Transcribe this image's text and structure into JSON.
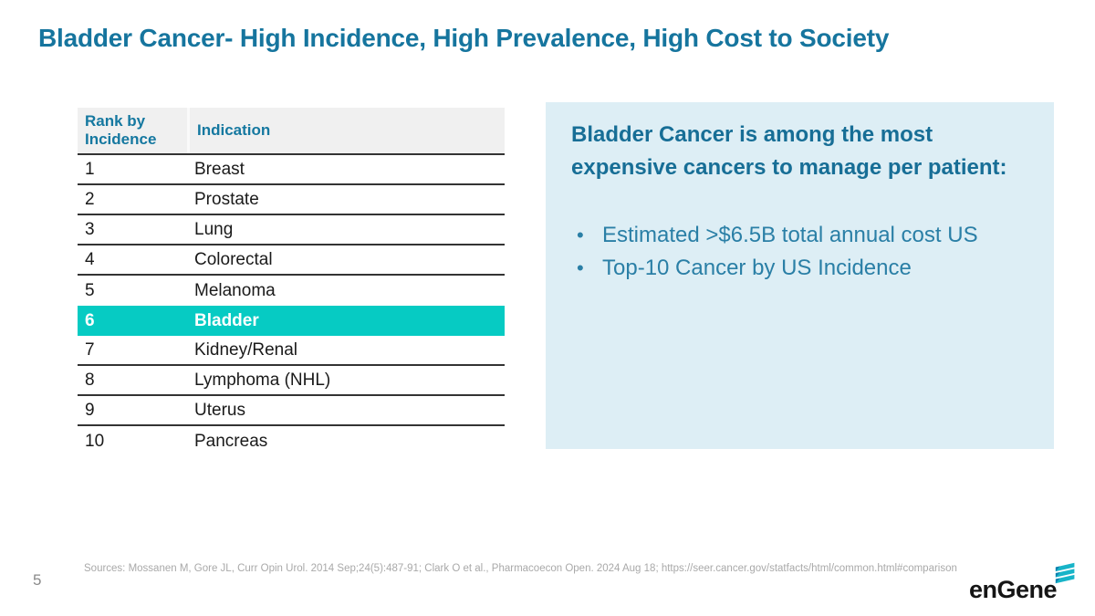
{
  "slide": {
    "title": "Bladder Cancer- High Incidence, High Prevalence, High Cost to Society",
    "page_number": "5",
    "sources": "Sources: Mossanen M, Gore JL, Curr Opin Urol. 2014 Sep;24(5):487-91; Clark O et al., Pharmacoecon Open. 2024 Aug 18; https://seer.cancer.gov/statfacts/html/common.html#comparison",
    "logo_text": "enGene"
  },
  "table": {
    "columns": [
      "Rank by Incidence",
      "Indication"
    ],
    "rows": [
      {
        "rank": "1",
        "indication": "Breast",
        "highlighted": false
      },
      {
        "rank": "2",
        "indication": "Prostate",
        "highlighted": false
      },
      {
        "rank": "3",
        "indication": "Lung",
        "highlighted": false
      },
      {
        "rank": "4",
        "indication": "Colorectal",
        "highlighted": false
      },
      {
        "rank": "5",
        "indication": "Melanoma",
        "highlighted": false
      },
      {
        "rank": "6",
        "indication": "Bladder",
        "highlighted": true
      },
      {
        "rank": "7",
        "indication": "Kidney/Renal",
        "highlighted": false
      },
      {
        "rank": "8",
        "indication": "Lymphoma (NHL)",
        "highlighted": false
      },
      {
        "rank": "9",
        "indication": "Uterus",
        "highlighted": false
      },
      {
        "rank": "10",
        "indication": "Pancreas",
        "highlighted": false
      }
    ]
  },
  "panel": {
    "heading": "Bladder Cancer is among the most expensive cancers to manage per patient:",
    "bullets": [
      "Estimated >$6.5B total annual cost US",
      "Top-10 Cancer by US Incidence"
    ],
    "bullet_glyph": "•"
  },
  "icons": {
    "logo_mark": "three-slanted-teal-bars-icon"
  },
  "colors": {
    "title_teal": "#16759e",
    "table_header_text": "#1578a0",
    "highlight_teal": "#06cbc3",
    "panel_bg": "#ddeef5",
    "panel_heading": "#176e96",
    "panel_bullets": "#2a7fa6",
    "logo_teal": "#18b4c8",
    "footnote_gray": "#a9a9a9"
  }
}
